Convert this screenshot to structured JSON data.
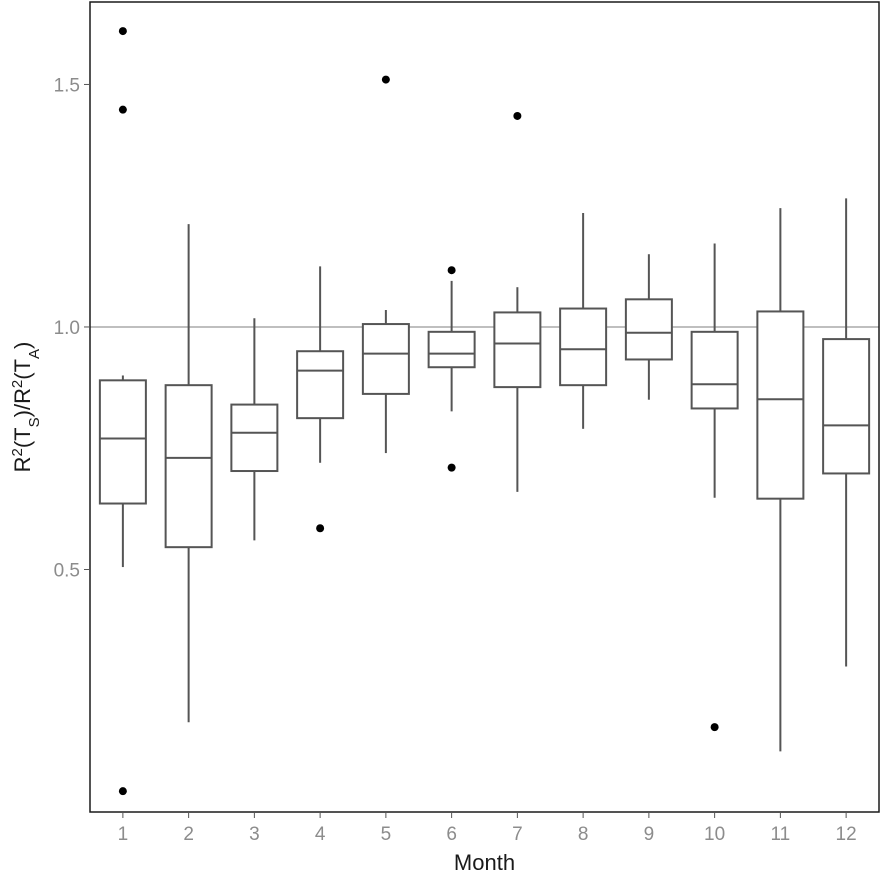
{
  "chart_data": {
    "type": "boxplot",
    "xlabel": "Month",
    "ylabel_parts": {
      "r1": "R",
      "sup1": "2",
      "t1": "(T",
      "sub1": "S",
      "mid": ")/R",
      "sup2": "2",
      "t2": "(T",
      "sub2": "A",
      "end": ")"
    },
    "ylim": [
      0.0,
      1.67
    ],
    "yticks": [
      {
        "value": 0.5,
        "label": "0.5"
      },
      {
        "value": 1.0,
        "label": "1.0"
      },
      {
        "value": 1.5,
        "label": "1.5"
      }
    ],
    "reference_line": 1.0,
    "categories": [
      "1",
      "2",
      "3",
      "4",
      "5",
      "6",
      "7",
      "8",
      "9",
      "10",
      "11",
      "12"
    ],
    "boxes": [
      {
        "month": "1",
        "whisker_low": 0.505,
        "q1": 0.636,
        "median": 0.77,
        "q3": 0.89,
        "whisker_high": 0.9,
        "outliers": [
          0.043,
          1.448,
          1.61
        ]
      },
      {
        "month": "2",
        "whisker_low": 0.185,
        "q1": 0.546,
        "median": 0.73,
        "q3": 0.88,
        "whisker_high": 1.212,
        "outliers": []
      },
      {
        "month": "3",
        "whisker_low": 0.56,
        "q1": 0.703,
        "median": 0.782,
        "q3": 0.84,
        "whisker_high": 1.018,
        "outliers": []
      },
      {
        "month": "4",
        "whisker_low": 0.72,
        "q1": 0.812,
        "median": 0.91,
        "q3": 0.95,
        "whisker_high": 1.125,
        "outliers": [
          0.585
        ]
      },
      {
        "month": "5",
        "whisker_low": 0.74,
        "q1": 0.862,
        "median": 0.945,
        "q3": 1.006,
        "whisker_high": 1.035,
        "outliers": [
          1.51
        ]
      },
      {
        "month": "6",
        "whisker_low": 0.826,
        "q1": 0.917,
        "median": 0.945,
        "q3": 0.99,
        "whisker_high": 1.095,
        "outliers": [
          0.71,
          1.117
        ]
      },
      {
        "month": "7",
        "whisker_low": 0.66,
        "q1": 0.876,
        "median": 0.966,
        "q3": 1.03,
        "whisker_high": 1.082,
        "outliers": [
          1.435
        ]
      },
      {
        "month": "8",
        "whisker_low": 0.79,
        "q1": 0.88,
        "median": 0.954,
        "q3": 1.038,
        "whisker_high": 1.235,
        "outliers": []
      },
      {
        "month": "9",
        "whisker_low": 0.85,
        "q1": 0.933,
        "median": 0.988,
        "q3": 1.057,
        "whisker_high": 1.15,
        "outliers": []
      },
      {
        "month": "10",
        "whisker_low": 0.648,
        "q1": 0.832,
        "median": 0.882,
        "q3": 0.99,
        "whisker_high": 1.172,
        "outliers": [
          0.175
        ]
      },
      {
        "month": "11",
        "whisker_low": 0.125,
        "q1": 0.646,
        "median": 0.851,
        "q3": 1.032,
        "whisker_high": 1.245,
        "outliers": []
      },
      {
        "month": "12",
        "whisker_low": 0.3,
        "q1": 0.698,
        "median": 0.797,
        "q3": 0.975,
        "whisker_high": 1.265,
        "outliers": []
      }
    ],
    "grid": false,
    "colors": {
      "box_stroke": "#555555",
      "outlier": "#000000",
      "reference_line": "#999999",
      "frame": "#1a1a1a",
      "tick_label": "#8c8c8c"
    }
  }
}
